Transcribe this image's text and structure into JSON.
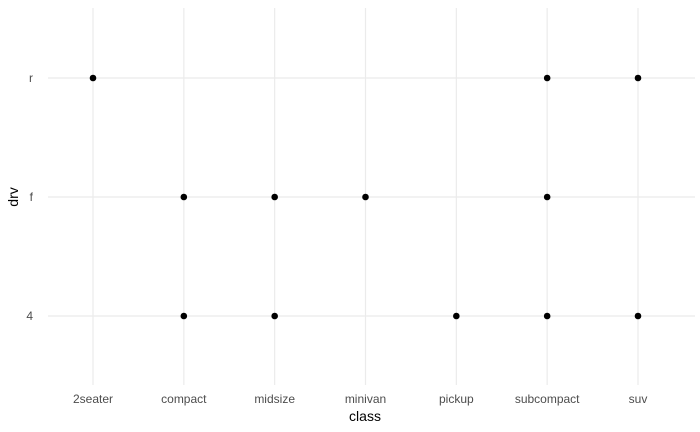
{
  "chart_data": {
    "type": "scatter",
    "title": "",
    "xlabel": "class",
    "ylabel": "drv",
    "x_categories": [
      "2seater",
      "compact",
      "midsize",
      "minivan",
      "pickup",
      "subcompact",
      "suv"
    ],
    "y_categories": [
      "4",
      "f",
      "r"
    ],
    "points": [
      {
        "x": "2seater",
        "y": "r"
      },
      {
        "x": "compact",
        "y": "f"
      },
      {
        "x": "compact",
        "y": "4"
      },
      {
        "x": "midsize",
        "y": "f"
      },
      {
        "x": "midsize",
        "y": "4"
      },
      {
        "x": "minivan",
        "y": "f"
      },
      {
        "x": "pickup",
        "y": "4"
      },
      {
        "x": "subcompact",
        "y": "r"
      },
      {
        "x": "subcompact",
        "y": "f"
      },
      {
        "x": "subcompact",
        "y": "4"
      },
      {
        "x": "suv",
        "y": "r"
      },
      {
        "x": "suv",
        "y": "4"
      }
    ],
    "grid": true,
    "legend": "none",
    "point_color": "#000000",
    "grid_color": "#ebebeb"
  }
}
